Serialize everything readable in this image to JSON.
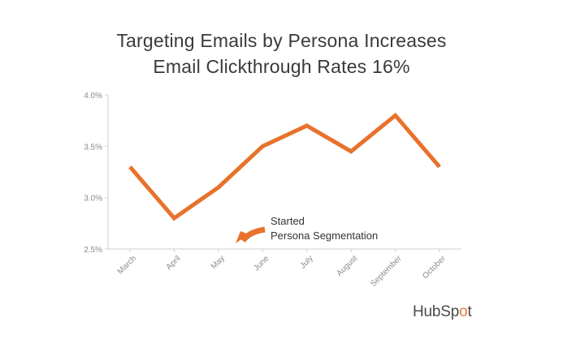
{
  "header": {
    "title_line1": "Targeting Emails by Persona Increases",
    "title_line2": "Email Clickthrough Rates 16%"
  },
  "chart_data": {
    "type": "line",
    "categories": [
      "March",
      "April",
      "May",
      "June",
      "July",
      "August",
      "September",
      "October"
    ],
    "series": [
      {
        "values": [
          3.3,
          2.8,
          3.1,
          3.5,
          3.7,
          3.45,
          3.8,
          3.3
        ]
      }
    ],
    "ylim": [
      2.5,
      4.0
    ],
    "y_ticks": [
      "2.5%",
      "3.0%",
      "3.5%",
      "4.0%"
    ],
    "grid": false,
    "annotation": {
      "line1": "Started",
      "line2": "Persona Segmentation"
    },
    "colors": {
      "line": "#e8722c",
      "arrow": "#e8722c",
      "axis": "#cfcfcf",
      "tick_text": "#8a8a8a"
    }
  },
  "brand": {
    "logo_prefix": "HubSp",
    "logo_o": "o",
    "logo_suffix": "t"
  }
}
